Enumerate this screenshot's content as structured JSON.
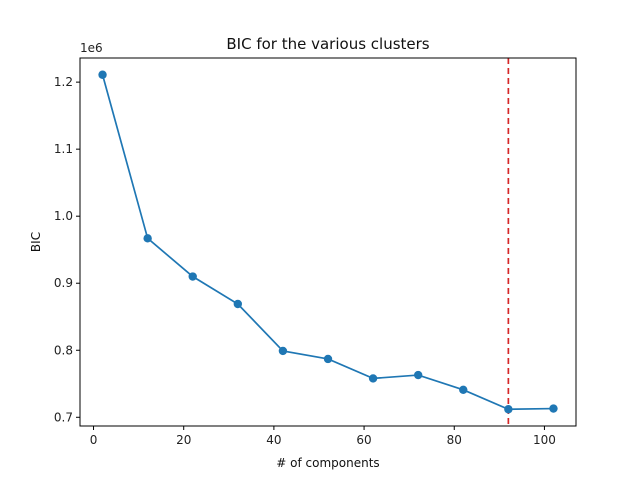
{
  "chart_data": {
    "type": "line",
    "title": "BIC for the various clusters",
    "xlabel": "# of components",
    "ylabel": "BIC",
    "y_offset_label": "1e6",
    "x": [
      2,
      12,
      22,
      32,
      42,
      52,
      62,
      72,
      82,
      92,
      102
    ],
    "series": [
      {
        "name": "",
        "values": [
          1211000,
          967000,
          910000,
          869000,
          799000,
          787000,
          758000,
          763000,
          741000,
          712000,
          713000
        ],
        "color": "#1f77b4",
        "marker": "circle"
      }
    ],
    "reference_line": {
      "orientation": "vertical",
      "x": 92,
      "color": "#d62728",
      "style": "dashed"
    },
    "xlim": [
      -3,
      107
    ],
    "ylim": [
      687000,
      1236000
    ],
    "x_ticks": [
      0,
      20,
      40,
      60,
      80,
      100
    ],
    "x_tick_labels": [
      "0",
      "20",
      "40",
      "60",
      "80",
      "100"
    ],
    "y_ticks": [
      700000,
      800000,
      900000,
      1000000,
      1100000,
      1200000
    ],
    "y_tick_labels": [
      "0.7",
      "0.8",
      "0.9",
      "1.0",
      "1.1",
      "1.2"
    ],
    "grid": false,
    "legend": "none"
  }
}
